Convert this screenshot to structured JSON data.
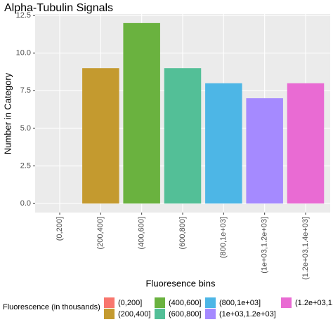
{
  "chart_data": {
    "type": "bar",
    "title": "Alpha-Tubulin Signals",
    "x_label": "Fluoresence bins",
    "y_label": "Number in Category",
    "categories": [
      "(0,200]",
      "(200,400]",
      "(400,600]",
      "(600,800]",
      "(800,1e+03]",
      "(1e+03,1.2e+03]",
      "(1.2e+03,1.4e+03]"
    ],
    "values": [
      0,
      9,
      12,
      9,
      8,
      7,
      8
    ],
    "colors": [
      "#F8766D",
      "#C49A2F",
      "#6AB23F",
      "#53BF97",
      "#4DB6E6",
      "#A58AFF",
      "#E96BD3"
    ],
    "ylim": [
      -0.6,
      12.6
    ],
    "yticks": [
      {
        "value": 0,
        "label": "0.0"
      },
      2.5,
      {
        "value": 5,
        "label": "5.0"
      },
      7.5,
      {
        "value": 10,
        "label": "10.0"
      },
      12.5
    ],
    "grid": true,
    "legend_title": "Fluorescence (in thousands)",
    "legend_position": "bottom"
  }
}
